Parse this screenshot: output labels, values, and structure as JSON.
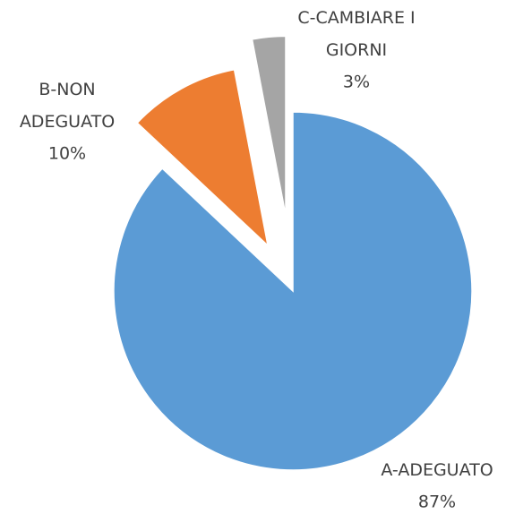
{
  "chart_data": {
    "type": "pie",
    "categories": [
      "A-ADEGUATO",
      "B-NON ADEGUATO",
      "C-CAMBIARE I GIORNI"
    ],
    "values": [
      87,
      10,
      3
    ],
    "value_labels": [
      "87%",
      "10%",
      "3%"
    ],
    "colors": [
      "#5b9bd5",
      "#ed7d31",
      "#a5a5a5"
    ]
  }
}
